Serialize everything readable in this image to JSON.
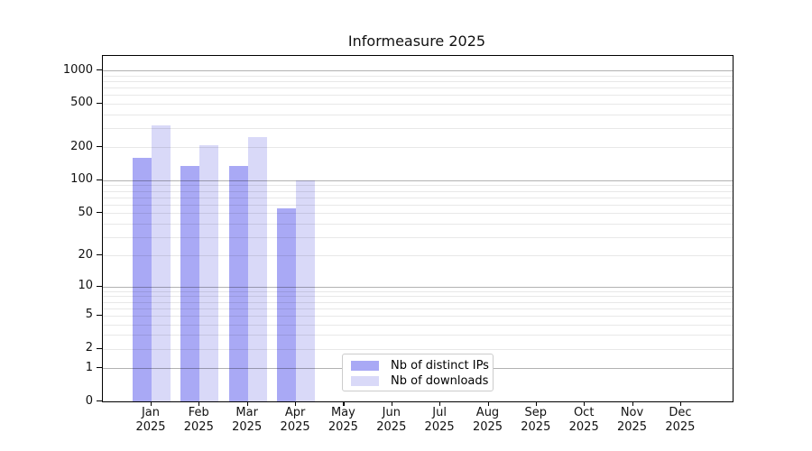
{
  "figure": {
    "background": "#ffffff"
  },
  "chart_data": {
    "type": "bar",
    "title": "Informeasure 2025",
    "categories": [
      "Jan",
      "Feb",
      "Mar",
      "Apr",
      "May",
      "Jun",
      "Jul",
      "Aug",
      "Sep",
      "Oct",
      "Nov",
      "Dec"
    ],
    "category_year": "2025",
    "x_tick_labels": [
      "Jan 2025",
      "Feb 2025",
      "Mar 2025",
      "Apr 2025",
      "May 2025",
      "Jun 2025",
      "Jul 2025",
      "Aug 2025",
      "Sep 2025",
      "Oct 2025",
      "Nov 2025",
      "Dec 2025"
    ],
    "series": [
      {
        "name": "Nb of distinct IPs",
        "color": "#a9a9f5",
        "values": [
          160,
          135,
          135,
          55,
          null,
          null,
          null,
          null,
          null,
          null,
          null,
          null
        ]
      },
      {
        "name": "Nb of downloads",
        "color": "#d9d9f8",
        "values": [
          315,
          210,
          250,
          100,
          null,
          null,
          null,
          null,
          null,
          null,
          null,
          null
        ]
      }
    ],
    "yscale": "log1p",
    "ylim": [
      0,
      1352
    ],
    "ytick_values": [
      1000,
      500,
      200,
      100,
      50,
      20,
      10,
      5,
      2,
      1,
      0
    ],
    "ytick_labels": [
      "1000",
      "500",
      "200",
      "100",
      "50",
      "20",
      "10",
      "5",
      "2",
      "1",
      "0"
    ],
    "grid": {
      "enabled": true,
      "major_values": [
        1,
        10,
        100,
        1000
      ],
      "major_color": "rgba(0,0,0,0.30)",
      "minor_color": "rgba(0,0,0,0.09)",
      "drawn_over_bars": true
    },
    "legend": {
      "position": "lower-center-inside",
      "border_color": "#cccccc",
      "background": "#ffffff"
    }
  }
}
